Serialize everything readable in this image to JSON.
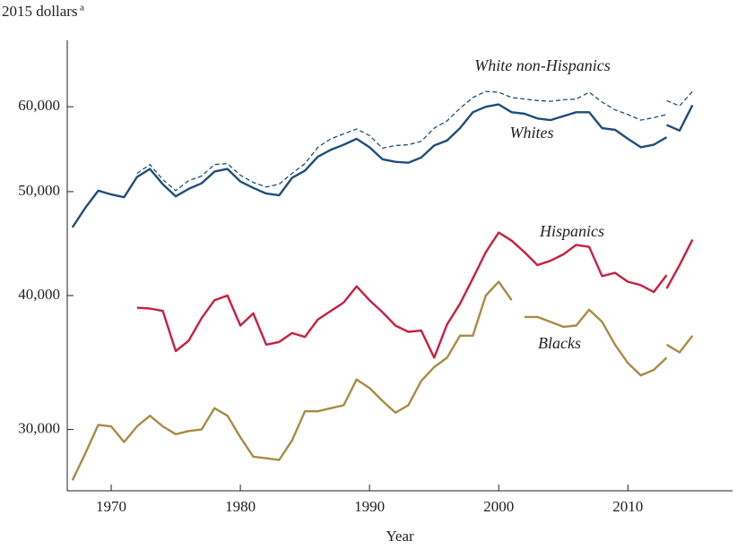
{
  "chart_data": {
    "type": "line",
    "y_label": "2015 dollars",
    "y_label_footnote": "a",
    "x_label": "Year",
    "ylog": true,
    "xlim": [
      1966.6,
      2018.1
    ],
    "ylim": [
      26300,
      69200
    ],
    "xticks": [
      1970,
      1980,
      1990,
      2000,
      2010
    ],
    "yticks": [
      {
        "value": 30000,
        "label": "30,000"
      },
      {
        "value": 40000,
        "label": "40,000"
      },
      {
        "value": 50000,
        "label": "50,000"
      },
      {
        "value": 60000,
        "label": "60,000"
      }
    ],
    "series": [
      {
        "name": "White non-Hispanics",
        "color": "#1f4e79",
        "style": "dashed",
        "x": [
          1972,
          1973,
          1974,
          1975,
          1976,
          1977,
          1978,
          1979,
          1980,
          1981,
          1982,
          1983,
          1984,
          1985,
          1986,
          1987,
          1988,
          1989,
          1990,
          1991,
          1992,
          1993,
          1994,
          1995,
          1996,
          1997,
          1998,
          1999,
          2000,
          2001,
          2002,
          2003,
          2004,
          2005,
          2006,
          2007,
          2008,
          2009,
          2010,
          2011,
          2012,
          2013,
          null,
          2013,
          2014,
          2015
        ],
        "values": [
          52000,
          53000,
          51300,
          50100,
          51200,
          51700,
          53000,
          53100,
          51800,
          51000,
          50500,
          50800,
          52000,
          53100,
          55000,
          56000,
          56600,
          57200,
          56400,
          54900,
          55200,
          55300,
          55700,
          57300,
          58200,
          59800,
          61200,
          62000,
          61900,
          61200,
          61000,
          60800,
          60700,
          60900,
          61000,
          61900,
          60600,
          59600,
          59000,
          58300,
          58600,
          59000,
          null,
          60800,
          60100,
          62000
        ]
      },
      {
        "name": "Whites",
        "color": "#1f4e79",
        "style": "solid",
        "x": [
          1967,
          1968,
          1969,
          1970,
          1971,
          1972,
          1973,
          1974,
          1975,
          1976,
          1977,
          1978,
          1979,
          1980,
          1981,
          1982,
          1983,
          1984,
          1985,
          1986,
          1987,
          1988,
          1989,
          1990,
          1991,
          1992,
          1993,
          1994,
          1995,
          1996,
          1997,
          1998,
          1999,
          2000,
          2001,
          2002,
          2003,
          2004,
          2005,
          2006,
          2007,
          2008,
          2009,
          2010,
          2011,
          2012,
          2013,
          null,
          2013,
          2014,
          2015
        ],
        "values": [
          46300,
          48300,
          50100,
          49700,
          49400,
          51600,
          52500,
          50800,
          49500,
          50300,
          50900,
          52200,
          52500,
          51100,
          50400,
          49800,
          49600,
          51500,
          52300,
          53900,
          54700,
          55300,
          56000,
          55000,
          53600,
          53300,
          53200,
          53800,
          55200,
          55800,
          57300,
          59300,
          60000,
          60300,
          59300,
          59100,
          58500,
          58300,
          58800,
          59300,
          59300,
          57300,
          57100,
          56000,
          55000,
          55300,
          56200,
          null,
          57700,
          57000,
          60200
        ]
      },
      {
        "name": "Hispanics",
        "color": "#c8203f",
        "style": "solid",
        "x": [
          1972,
          1973,
          1974,
          1975,
          1976,
          1977,
          1978,
          1979,
          1980,
          1981,
          1982,
          1983,
          1984,
          1985,
          1986,
          1987,
          1988,
          1989,
          1990,
          1991,
          1992,
          1993,
          1994,
          1995,
          1996,
          1997,
          1998,
          1999,
          2000,
          2001,
          2002,
          2003,
          2004,
          2005,
          2006,
          2007,
          2008,
          2009,
          2010,
          2011,
          2012,
          2013,
          null,
          2013,
          2014,
          2015
        ],
        "values": [
          38970,
          38900,
          38700,
          35500,
          36300,
          38100,
          39600,
          40000,
          37500,
          38500,
          36000,
          36200,
          36900,
          36600,
          38000,
          38700,
          39400,
          40800,
          39600,
          38600,
          37500,
          37000,
          37100,
          35000,
          37600,
          39300,
          41500,
          43900,
          45800,
          45000,
          43900,
          42700,
          43100,
          43700,
          44600,
          44400,
          41700,
          42000,
          41200,
          40900,
          40300,
          41800,
          null,
          40600,
          42700,
          45100
        ]
      },
      {
        "name": "Blacks",
        "color": "#a88c45",
        "style": "solid",
        "x": [
          1967,
          1968,
          1969,
          1970,
          1971,
          1972,
          1973,
          1974,
          1975,
          1976,
          1977,
          1978,
          1979,
          1980,
          1981,
          1982,
          1983,
          1984,
          1985,
          1986,
          1987,
          1988,
          1989,
          1990,
          1991,
          1992,
          1993,
          1994,
          1995,
          1996,
          1997,
          1998,
          1999,
          2000,
          2001,
          null,
          2002,
          2003,
          2004,
          2005,
          2006,
          2007,
          2008,
          2009,
          2010,
          2011,
          2012,
          2013,
          null,
          2013,
          2014,
          2015
        ],
        "values": [
          26900,
          28500,
          30300,
          30200,
          29200,
          30200,
          30900,
          30200,
          29700,
          29900,
          30000,
          31400,
          30900,
          29500,
          28300,
          28200,
          28100,
          29300,
          31200,
          31200,
          31400,
          31600,
          33400,
          32800,
          31900,
          31100,
          31600,
          33300,
          34300,
          35000,
          36700,
          36700,
          40000,
          41200,
          39600,
          null,
          38200,
          38200,
          37800,
          37400,
          37500,
          38800,
          37800,
          36000,
          34600,
          33700,
          34100,
          35000,
          null,
          36000,
          35400,
          36700
        ]
      }
    ]
  }
}
